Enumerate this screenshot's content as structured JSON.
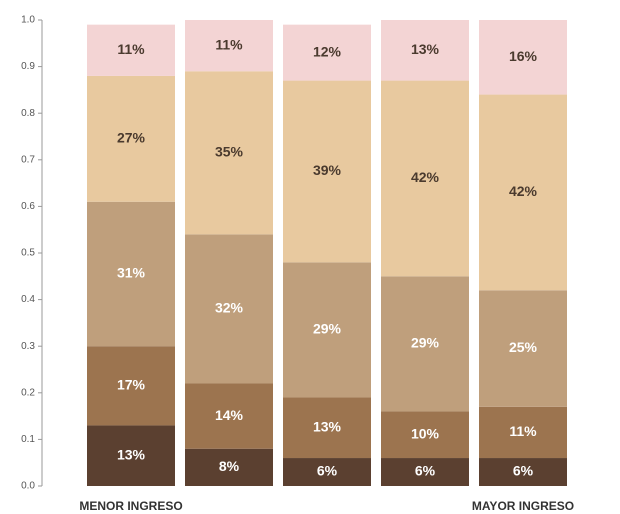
{
  "chart_data": {
    "type": "stacked-bar",
    "categories": [
      "MENOR INGRESO",
      null,
      null,
      null,
      "MAYOR INGRESO"
    ],
    "series": [
      {
        "color": "#5b4030",
        "values": [
          0.13,
          0.08,
          0.06,
          0.06,
          0.06
        ],
        "value_labels": [
          "13%",
          "8%",
          "6%",
          "6%",
          "6%"
        ]
      },
      {
        "color": "#9c744f",
        "values": [
          0.17,
          0.14,
          0.13,
          0.1,
          0.11
        ],
        "value_labels": [
          "17%",
          "14%",
          "13%",
          "10%",
          "11%"
        ]
      },
      {
        "color": "#bf9f7c",
        "values": [
          0.31,
          0.32,
          0.29,
          0.29,
          0.25
        ],
        "value_labels": [
          "31%",
          "32%",
          "29%",
          "29%",
          "25%"
        ]
      },
      {
        "color": "#e8c99f",
        "values": [
          0.27,
          0.35,
          0.39,
          0.42,
          0.42
        ],
        "value_labels": [
          "27%",
          "35%",
          "39%",
          "42%",
          "42%"
        ]
      },
      {
        "color": "#f3d4d4",
        "values": [
          0.11,
          0.11,
          0.12,
          0.13,
          0.16
        ],
        "value_labels": [
          "11%",
          "11%",
          "12%",
          "13%",
          "16%"
        ]
      }
    ],
    "ylim": [
      0,
      1
    ],
    "yticks": [
      {
        "value": 0,
        "label": "0.0"
      },
      0.1,
      0.2,
      0.3,
      0.4,
      0.5,
      0.6,
      0.7,
      0.8,
      0.9,
      {
        "value": 1,
        "label": "1.0"
      }
    ]
  }
}
